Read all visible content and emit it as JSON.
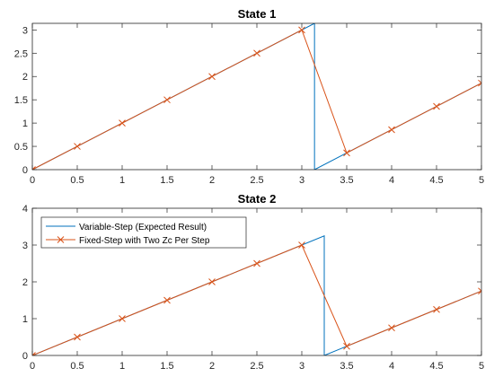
{
  "chart_data": [
    {
      "type": "line",
      "title": "State 1",
      "xlabel": "",
      "ylabel": "",
      "xlim": [
        0,
        5
      ],
      "ylim": [
        0,
        3.14159
      ],
      "xticks": [
        "0",
        "0.5",
        "1",
        "1.5",
        "2",
        "2.5",
        "3",
        "3.5",
        "4",
        "4.5",
        "5"
      ],
      "yticks": [
        "0",
        "0.5",
        "1",
        "1.5",
        "2",
        "2.5",
        "3"
      ],
      "grid": false,
      "legend": null,
      "series": [
        {
          "color": "#0072BD",
          "marker": "none",
          "x": [
            0,
            3.1416,
            3.1416,
            5
          ],
          "y": [
            0,
            3.1416,
            0,
            1.8584
          ]
        },
        {
          "color": "#D95319",
          "marker": "x",
          "x": [
            0,
            0.5,
            1,
            1.5,
            2,
            2.5,
            3,
            3.5,
            4,
            4.5,
            5
          ],
          "y": [
            0,
            0.5,
            1,
            1.5,
            2,
            2.5,
            3,
            0.3584,
            0.8584,
            1.3584,
            1.8584
          ]
        }
      ]
    },
    {
      "type": "line",
      "title": "State 2",
      "xlabel": "",
      "ylabel": "",
      "xlim": [
        0,
        5
      ],
      "ylim": [
        0,
        4
      ],
      "xticks": [
        "0",
        "0.5",
        "1",
        "1.5",
        "2",
        "2.5",
        "3",
        "3.5",
        "4",
        "4.5",
        "5"
      ],
      "yticks": [
        "0",
        "1",
        "2",
        "3",
        "4"
      ],
      "grid": false,
      "legend": "top-left",
      "series": [
        {
          "name": "Variable-Step (Expected Result)",
          "color": "#0072BD",
          "marker": "none",
          "x": [
            0,
            3.25,
            3.25,
            5
          ],
          "y": [
            0,
            3.25,
            0,
            1.75
          ]
        },
        {
          "name": "Fixed-Step with Two Zc Per Step",
          "color": "#D95319",
          "marker": "x",
          "x": [
            0,
            0.5,
            1,
            1.5,
            2,
            2.5,
            3,
            3.5,
            4,
            4.5,
            5
          ],
          "y": [
            0,
            0.5,
            1,
            1.5,
            2,
            2.5,
            3,
            0.25,
            0.75,
            1.25,
            1.75
          ]
        }
      ]
    }
  ]
}
